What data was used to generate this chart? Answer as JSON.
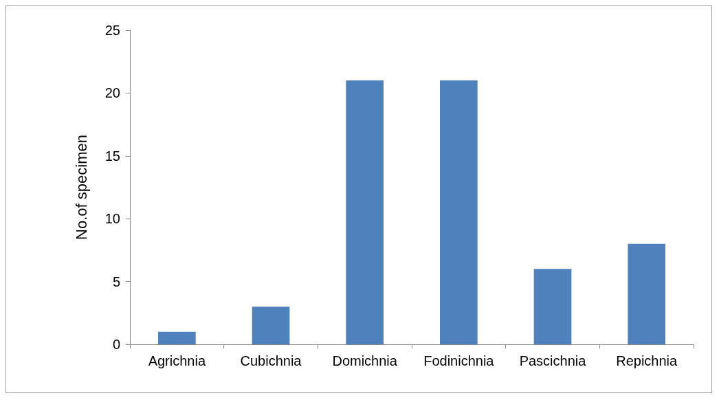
{
  "chart_data": {
    "type": "bar",
    "ylabel": "No.of specimen",
    "categories": [
      "Agrichnia",
      "Cubichnia",
      "Domichnia",
      "Fodinichnia",
      "Pascichnia",
      "Repichnia"
    ],
    "values": [
      1,
      3,
      21,
      21,
      6,
      8
    ],
    "color": "#4f81bd",
    "ylim": [
      0,
      25
    ],
    "yticks": [
      0,
      5,
      10,
      15,
      20,
      25
    ],
    "grid": false
  }
}
